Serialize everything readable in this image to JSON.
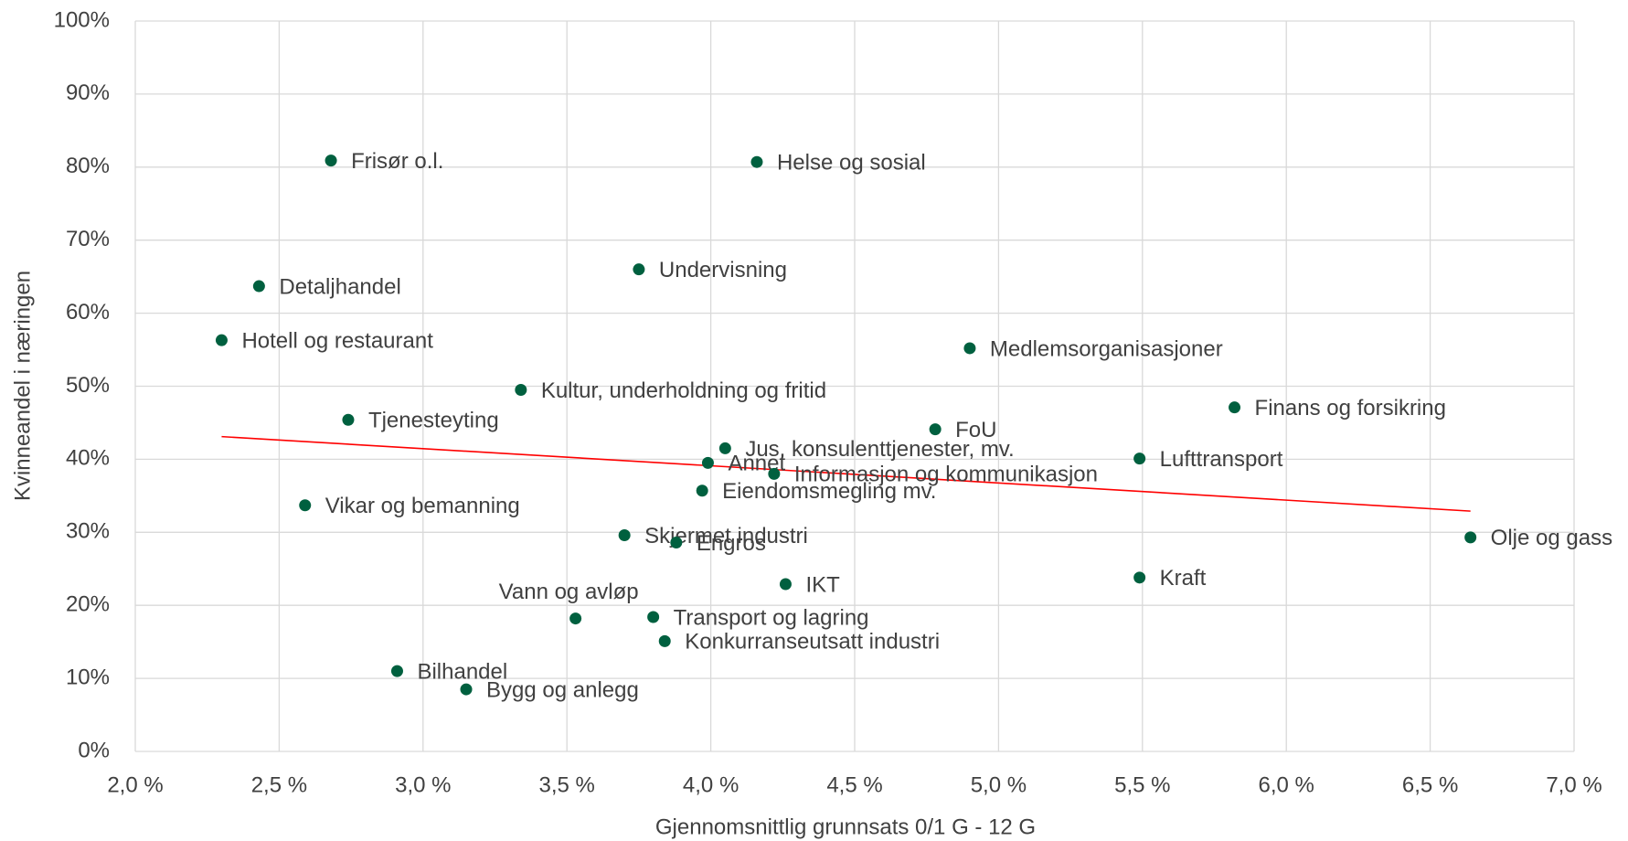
{
  "chart_data": {
    "type": "scatter",
    "x_label": "Gjennomsnittlig grunnsats 0/1 G - 12 G",
    "y_label": "Kvinneandel i næringen",
    "xlim": [
      2.0,
      7.0
    ],
    "xticks": [
      {
        "value": 2.0,
        "label": "2,0 %"
      },
      {
        "value": 2.5,
        "label": "2,5 %"
      },
      {
        "value": 3.0,
        "label": "3,0 %"
      },
      {
        "value": 3.5,
        "label": "3,5 %"
      },
      {
        "value": 4.0,
        "label": "4,0 %"
      },
      {
        "value": 4.5,
        "label": "4,5 %"
      },
      {
        "value": 5.0,
        "label": "5,0 %"
      },
      {
        "value": 5.5,
        "label": "5,5 %"
      },
      {
        "value": 6.0,
        "label": "6,0 %"
      },
      {
        "value": 6.5,
        "label": "6,5 %"
      },
      {
        "value": 7.0,
        "label": "7,0 %"
      }
    ],
    "ylim": [
      0,
      100
    ],
    "yticks": [
      {
        "value": 0,
        "label": "0%"
      },
      {
        "value": 10,
        "label": "10%"
      },
      {
        "value": 20,
        "label": "20%"
      },
      {
        "value": 30,
        "label": "30%"
      },
      {
        "value": 40,
        "label": "40%"
      },
      {
        "value": 50,
        "label": "50%"
      },
      {
        "value": 60,
        "label": "60%"
      },
      {
        "value": 70,
        "label": "70%"
      },
      {
        "value": 80,
        "label": "80%"
      },
      {
        "value": 90,
        "label": "90%"
      },
      {
        "value": 100,
        "label": "100%"
      }
    ],
    "grid": true,
    "color": "#00603f",
    "labels": [
      "Frisør o.l.",
      "Helse og sosial",
      "Detaljhandel",
      "Undervisning",
      "Hotell og restaurant",
      "Medlemsorganisasjoner",
      "Kultur, underholdning og fritid",
      "Finans og forsikring",
      "Tjenesteyting",
      "FoU",
      "Jus, konsulenttjenester, mv.",
      "Lufttransport",
      "Annet",
      "Informasjon og kommunikasjon",
      "Eiendomsmegling mv.",
      "Vikar og bemanning",
      "Skjermet industri",
      "Olje og gass",
      "Engros",
      "Kraft",
      "IKT",
      "Vann og avløp",
      "Transport og lagring",
      "Konkurranseutsatt industri",
      "Bilhandel",
      "Bygg og anlegg"
    ],
    "x": [
      2.68,
      4.16,
      2.43,
      3.75,
      2.3,
      4.9,
      3.34,
      5.82,
      2.74,
      4.78,
      4.05,
      5.49,
      3.99,
      4.22,
      3.97,
      2.59,
      3.7,
      6.64,
      3.88,
      5.49,
      4.26,
      3.53,
      3.8,
      3.84,
      2.91,
      3.15
    ],
    "values": [
      80.9,
      80.7,
      63.7,
      66.0,
      56.3,
      55.2,
      49.5,
      47.1,
      45.4,
      44.1,
      41.5,
      40.1,
      39.5,
      38.0,
      35.7,
      33.7,
      29.6,
      29.3,
      28.6,
      23.8,
      22.9,
      18.2,
      18.4,
      15.1,
      11.0,
      8.5
    ],
    "trendline": {
      "color": "#ff0000",
      "x": [
        2.3,
        6.64
      ],
      "values": [
        43.1,
        32.9
      ]
    }
  }
}
